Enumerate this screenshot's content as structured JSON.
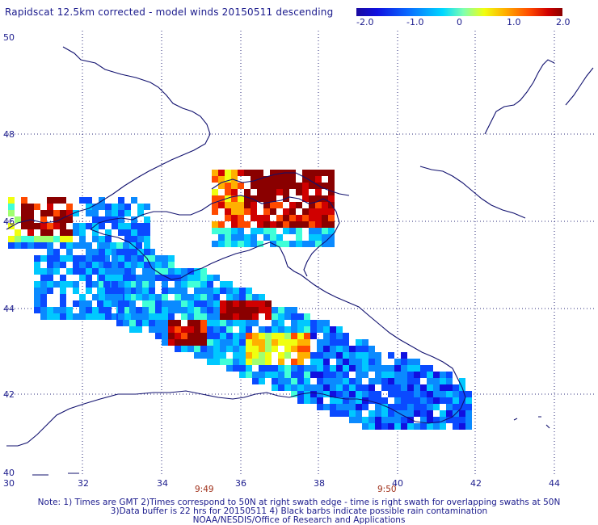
{
  "title": "Rapidscat 12.5km corrected - model winds 20150511 descending",
  "colorbar": {
    "labels": [
      "-2.0",
      "-1.0",
      "0",
      "1.0",
      "2.0"
    ],
    "colors": [
      "#1a0aa0",
      "#0a6aff",
      "#00d8ff",
      "#f0ff10",
      "#ff4a00",
      "#8a0000"
    ]
  },
  "axes": {
    "lon_ticks": [
      "30",
      "32",
      "34",
      "36",
      "38",
      "40",
      "42",
      "44"
    ],
    "lat_ticks": [
      "50",
      "48",
      "46",
      "44",
      "42",
      "40"
    ]
  },
  "swath_times": [
    "9:49",
    "9:50"
  ],
  "notes": [
    "Note: 1) Times are GMT 2)Times correspond to 50N at right swath edge - time is right swath for overlapping swaths at 50N",
    "3)Data buffer is 22 hrs for 20150511 4) Black barbs indicate possible rain contamination",
    "NOAA/NESDIS/Office of Research and Applications"
  ]
}
